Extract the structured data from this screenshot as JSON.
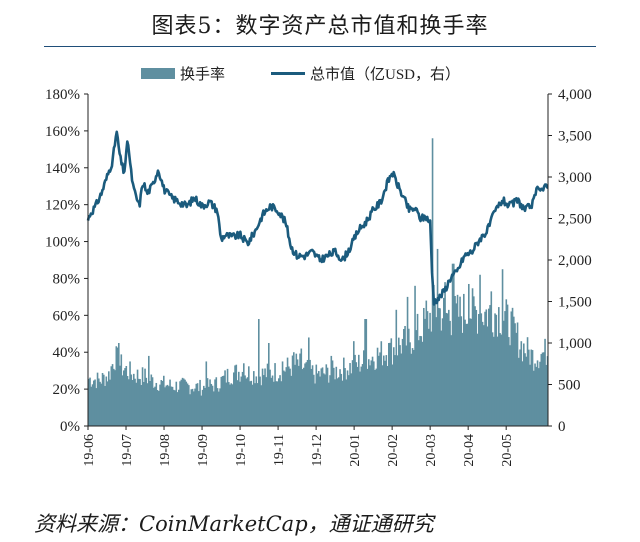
{
  "title": "图表5：数字资产总市值和换手率",
  "source": "资料来源：CoinMarketCap，通证通研究",
  "colors": {
    "bar": "#5f8fa0",
    "line": "#1b5b7d",
    "title_rule": "#1f4e79"
  },
  "chart_data": {
    "type": "bar",
    "legend_position": "top",
    "grid": false,
    "series": [
      {
        "name": "换手率",
        "type": "bar",
        "axis": "left"
      },
      {
        "name": "总市值（亿USD，右）",
        "type": "line",
        "axis": "right"
      }
    ],
    "y_left": {
      "ylim": [
        0,
        180
      ],
      "ticks": [
        "0%",
        "20%",
        "40%",
        "60%",
        "80%",
        "100%",
        "120%",
        "140%",
        "160%",
        "180%"
      ]
    },
    "y_right": {
      "ylim": [
        0,
        4000
      ],
      "ticks": [
        "0",
        "500",
        "1,000",
        "1,500",
        "2,000",
        "2,500",
        "3,000",
        "3,500",
        "4,000"
      ]
    },
    "x_ticks": [
      "19-06",
      "19-07",
      "19-08",
      "19-09",
      "19-10",
      "19-11",
      "19-12",
      "20-01",
      "20-02",
      "20-03",
      "20-04",
      "20-05"
    ],
    "x_range_months": [
      0,
      12.1
    ],
    "turnover_pct_anchors": [
      [
        0.0,
        26
      ],
      [
        0.3,
        25
      ],
      [
        0.55,
        28
      ],
      [
        0.7,
        38
      ],
      [
        0.9,
        32
      ],
      [
        1.2,
        28
      ],
      [
        1.5,
        27
      ],
      [
        1.8,
        24
      ],
      [
        2.2,
        22
      ],
      [
        2.6,
        22
      ],
      [
        3.0,
        21
      ],
      [
        3.4,
        23
      ],
      [
        3.7,
        28
      ],
      [
        4.0,
        30
      ],
      [
        4.5,
        28
      ],
      [
        5.0,
        30
      ],
      [
        5.5,
        34
      ],
      [
        6.0,
        28
      ],
      [
        6.5,
        30
      ],
      [
        7.0,
        33
      ],
      [
        7.5,
        38
      ],
      [
        8.0,
        42
      ],
      [
        8.5,
        48
      ],
      [
        8.8,
        54
      ],
      [
        9.0,
        60
      ],
      [
        9.1,
        65
      ],
      [
        9.3,
        62
      ],
      [
        9.6,
        60
      ],
      [
        10.0,
        63
      ],
      [
        10.4,
        62
      ],
      [
        10.8,
        62
      ],
      [
        11.1,
        56
      ],
      [
        11.4,
        44
      ],
      [
        11.7,
        38
      ],
      [
        12.0,
        40
      ],
      [
        12.1,
        41
      ]
    ],
    "turnover_spikes_pct": [
      [
        0.8,
        45
      ],
      [
        1.6,
        38
      ],
      [
        3.1,
        35
      ],
      [
        4.1,
        34
      ],
      [
        4.5,
        58
      ],
      [
        4.75,
        45
      ],
      [
        5.1,
        35
      ],
      [
        5.4,
        40
      ],
      [
        5.6,
        42
      ],
      [
        5.8,
        48
      ],
      [
        6.4,
        38
      ],
      [
        7.0,
        46
      ],
      [
        7.3,
        58
      ],
      [
        7.9,
        45
      ],
      [
        8.1,
        63
      ],
      [
        8.4,
        70
      ],
      [
        8.6,
        76
      ],
      [
        8.9,
        68
      ],
      [
        9.05,
        156
      ],
      [
        9.2,
        96
      ],
      [
        9.4,
        78
      ],
      [
        9.6,
        88
      ],
      [
        10.0,
        77
      ],
      [
        10.3,
        82
      ],
      [
        10.6,
        73
      ],
      [
        10.9,
        85
      ]
    ],
    "market_cap_anchors": [
      [
        0.0,
        2480
      ],
      [
        0.05,
        2550
      ],
      [
        0.2,
        2650
      ],
      [
        0.35,
        2800
      ],
      [
        0.5,
        3000
      ],
      [
        0.65,
        3200
      ],
      [
        0.75,
        3550
      ],
      [
        0.85,
        3220
      ],
      [
        0.95,
        3050
      ],
      [
        1.05,
        3450
      ],
      [
        1.12,
        3100
      ],
      [
        1.2,
        2850
      ],
      [
        1.35,
        2650
      ],
      [
        1.45,
        2950
      ],
      [
        1.55,
        2800
      ],
      [
        1.7,
        2900
      ],
      [
        1.85,
        3100
      ],
      [
        2.0,
        2850
      ],
      [
        2.2,
        2750
      ],
      [
        2.4,
        2700
      ],
      [
        2.6,
        2650
      ],
      [
        2.8,
        2750
      ],
      [
        3.0,
        2650
      ],
      [
        3.2,
        2700
      ],
      [
        3.4,
        2600
      ],
      [
        3.5,
        2250
      ],
      [
        3.6,
        2300
      ],
      [
        3.8,
        2280
      ],
      [
        4.0,
        2300
      ],
      [
        4.2,
        2200
      ],
      [
        4.4,
        2350
      ],
      [
        4.6,
        2550
      ],
      [
        4.8,
        2650
      ],
      [
        5.0,
        2600
      ],
      [
        5.2,
        2450
      ],
      [
        5.35,
        2150
      ],
      [
        5.5,
        2050
      ],
      [
        5.7,
        2050
      ],
      [
        5.9,
        2100
      ],
      [
        6.1,
        2000
      ],
      [
        6.3,
        2050
      ],
      [
        6.5,
        2100
      ],
      [
        6.7,
        2000
      ],
      [
        6.9,
        2150
      ],
      [
        7.1,
        2350
      ],
      [
        7.3,
        2450
      ],
      [
        7.5,
        2600
      ],
      [
        7.7,
        2700
      ],
      [
        7.85,
        2900
      ],
      [
        8.0,
        3060
      ],
      [
        8.15,
        2900
      ],
      [
        8.3,
        2750
      ],
      [
        8.45,
        2600
      ],
      [
        8.6,
        2620
      ],
      [
        8.75,
        2500
      ],
      [
        8.9,
        2520
      ],
      [
        9.0,
        2450
      ],
      [
        9.05,
        1850
      ],
      [
        9.1,
        1500
      ],
      [
        9.25,
        1550
      ],
      [
        9.4,
        1650
      ],
      [
        9.55,
        1800
      ],
      [
        9.7,
        1850
      ],
      [
        9.9,
        2050
      ],
      [
        10.1,
        2100
      ],
      [
        10.3,
        2250
      ],
      [
        10.5,
        2350
      ],
      [
        10.7,
        2580
      ],
      [
        10.9,
        2720
      ],
      [
        11.1,
        2650
      ],
      [
        11.3,
        2720
      ],
      [
        11.5,
        2600
      ],
      [
        11.7,
        2680
      ],
      [
        11.85,
        2900
      ],
      [
        11.95,
        2850
      ],
      [
        12.05,
        2880
      ],
      [
        12.1,
        2870
      ]
    ]
  }
}
